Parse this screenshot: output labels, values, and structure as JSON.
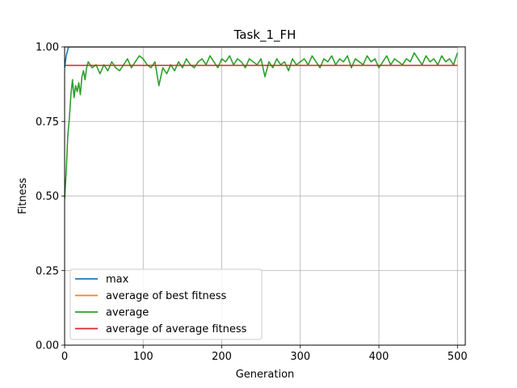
{
  "chart_data": {
    "type": "line",
    "title": "Task_1_FH",
    "xlabel": "Generation",
    "ylabel": "Fitness",
    "xlim": [
      0,
      510
    ],
    "ylim": [
      0.0,
      1.0
    ],
    "xticks": [
      0,
      100,
      200,
      300,
      400,
      500
    ],
    "yticks": [
      0.0,
      0.25,
      0.5,
      0.75,
      1.0
    ],
    "xtick_labels": [
      "0",
      "100",
      "200",
      "300",
      "400",
      "500"
    ],
    "ytick_labels": [
      "0.00",
      "0.25",
      "0.50",
      "0.75",
      "1.00"
    ],
    "grid": true,
    "legend_position": "lower-left",
    "series": [
      {
        "name": "max",
        "color": "#1f77b4",
        "x": [
          0,
          1,
          2,
          3,
          4,
          5,
          6,
          7,
          8,
          9,
          10,
          15,
          20,
          30,
          50,
          100,
          150,
          200,
          250,
          300,
          350,
          400,
          450,
          500
        ],
        "y": [
          0.93,
          0.95,
          0.97,
          0.98,
          0.99,
          1.0,
          1.0,
          1.0,
          1.0,
          1.0,
          1.0,
          1.0,
          1.0,
          1.0,
          1.0,
          1.0,
          1.0,
          1.0,
          1.0,
          1.0,
          1.0,
          1.0,
          1.0,
          1.0
        ]
      },
      {
        "name": "average of best fitness",
        "color": "#ff7f0e",
        "x": [
          0,
          500
        ],
        "y": [
          1.0,
          1.0
        ]
      },
      {
        "name": "average",
        "color": "#2ca02c",
        "x": [
          0,
          2,
          4,
          6,
          8,
          10,
          12,
          14,
          16,
          18,
          20,
          22,
          24,
          26,
          28,
          30,
          35,
          40,
          45,
          50,
          55,
          60,
          65,
          70,
          75,
          80,
          85,
          90,
          95,
          100,
          105,
          110,
          115,
          120,
          125,
          130,
          135,
          140,
          145,
          150,
          155,
          160,
          165,
          170,
          175,
          180,
          185,
          190,
          195,
          200,
          205,
          210,
          215,
          220,
          225,
          230,
          235,
          240,
          245,
          250,
          255,
          260,
          265,
          270,
          275,
          280,
          285,
          290,
          295,
          300,
          305,
          310,
          315,
          320,
          325,
          330,
          335,
          340,
          345,
          350,
          355,
          360,
          365,
          370,
          375,
          380,
          385,
          390,
          395,
          400,
          405,
          410,
          415,
          420,
          425,
          430,
          435,
          440,
          445,
          450,
          455,
          460,
          465,
          470,
          475,
          480,
          485,
          490,
          495,
          500
        ],
        "y": [
          0.49,
          0.58,
          0.7,
          0.76,
          0.84,
          0.89,
          0.83,
          0.87,
          0.85,
          0.88,
          0.84,
          0.9,
          0.92,
          0.89,
          0.93,
          0.95,
          0.93,
          0.94,
          0.91,
          0.94,
          0.92,
          0.95,
          0.93,
          0.92,
          0.94,
          0.96,
          0.93,
          0.95,
          0.97,
          0.96,
          0.94,
          0.93,
          0.95,
          0.87,
          0.93,
          0.91,
          0.94,
          0.92,
          0.95,
          0.93,
          0.96,
          0.94,
          0.93,
          0.95,
          0.96,
          0.94,
          0.97,
          0.95,
          0.93,
          0.96,
          0.95,
          0.97,
          0.94,
          0.96,
          0.95,
          0.93,
          0.96,
          0.95,
          0.94,
          0.96,
          0.9,
          0.95,
          0.93,
          0.96,
          0.94,
          0.95,
          0.92,
          0.96,
          0.94,
          0.95,
          0.96,
          0.94,
          0.97,
          0.95,
          0.93,
          0.96,
          0.95,
          0.97,
          0.94,
          0.96,
          0.95,
          0.97,
          0.93,
          0.96,
          0.95,
          0.94,
          0.97,
          0.95,
          0.96,
          0.93,
          0.95,
          0.97,
          0.94,
          0.96,
          0.95,
          0.94,
          0.96,
          0.95,
          0.98,
          0.96,
          0.94,
          0.97,
          0.95,
          0.96,
          0.94,
          0.97,
          0.95,
          0.96,
          0.94,
          0.98
        ]
      },
      {
        "name": "average of average fitness",
        "color": "#d62728",
        "x": [
          0,
          500
        ],
        "y": [
          0.938,
          0.938
        ]
      }
    ]
  }
}
